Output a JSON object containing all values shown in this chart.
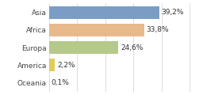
{
  "categories": [
    "Asia",
    "Africa",
    "Europa",
    "America",
    "Oceania"
  ],
  "values": [
    39.2,
    33.8,
    24.6,
    2.2,
    0.1
  ],
  "labels": [
    "39,2%",
    "33,8%",
    "24,6%",
    "2,2%",
    "0,1%"
  ],
  "bar_colors": [
    "#7b9dc5",
    "#e8b98a",
    "#b5c98a",
    "#e0cc5a",
    "#cccccc"
  ],
  "background_color": "#ffffff",
  "xlim": [
    0,
    52
  ],
  "bar_height": 0.72,
  "label_fontsize": 6.5,
  "tick_fontsize": 6.5,
  "grid_color": "#d0d0d0",
  "grid_ticks": [
    0,
    10,
    20,
    30,
    40,
    50
  ]
}
